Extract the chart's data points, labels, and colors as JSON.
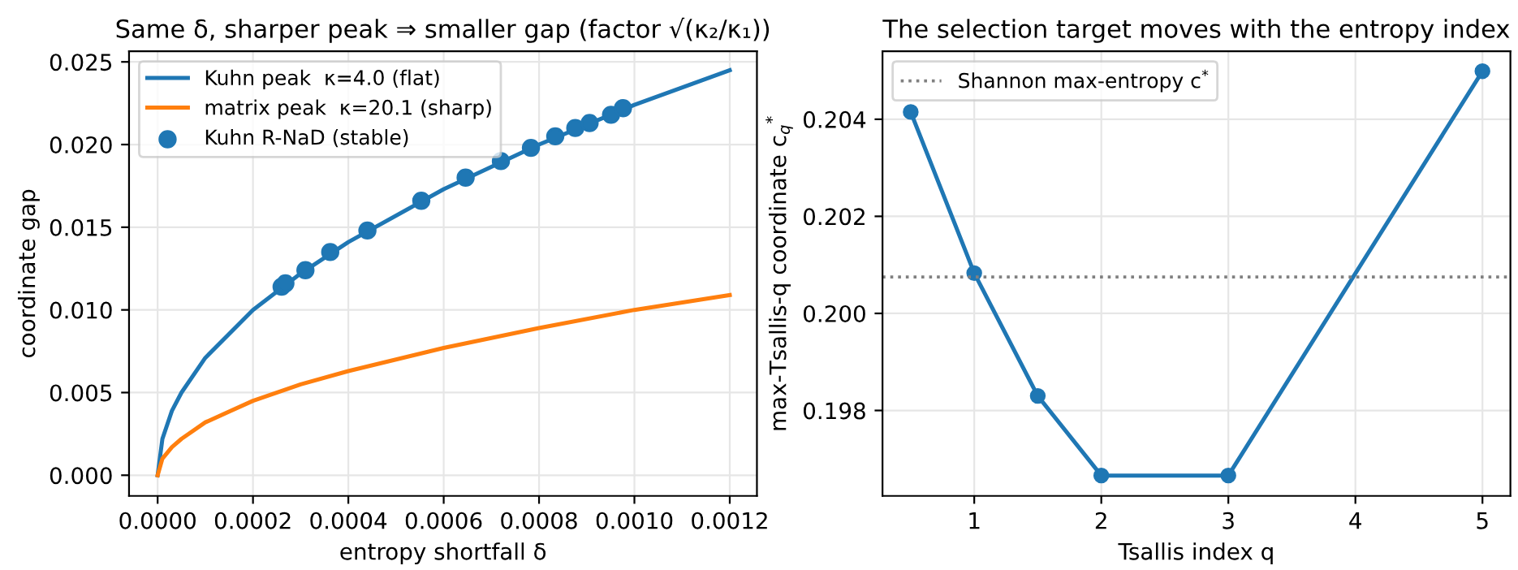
{
  "chart_data": [
    {
      "type": "line",
      "title": "Same δ, sharper peak ⇒ smaller gap (factor √(κ₂/κ₁))",
      "xlabel": "entropy shortfall δ",
      "ylabel": "coordinate gap",
      "xlim": [
        -6e-05,
        0.001257
      ],
      "ylim": [
        -0.00125,
        0.02564
      ],
      "xticks": [
        {
          "value": 0,
          "label": "0.0000"
        },
        {
          "value": 0.0002,
          "label": "0.0002"
        },
        {
          "value": 0.0004,
          "label": "0.0004"
        },
        {
          "value": 0.0006,
          "label": "0.0006"
        },
        {
          "value": 0.0008,
          "label": "0.0008"
        },
        {
          "value": 0.001,
          "label": "0.0010"
        },
        {
          "value": 0.0012,
          "label": "0.0012"
        }
      ],
      "yticks": [
        {
          "value": 0,
          "label": "0.000"
        },
        {
          "value": 0.005,
          "label": "0.005"
        },
        {
          "value": 0.01,
          "label": "0.010"
        },
        {
          "value": 0.015,
          "label": "0.015"
        },
        {
          "value": 0.02,
          "label": "0.020"
        },
        {
          "value": 0.025,
          "label": "0.025"
        }
      ],
      "grid": true,
      "legend": "top left",
      "series": [
        {
          "name": "Kuhn peak  κ=4.0 (flat)",
          "color": "#1f77b4",
          "type": "line",
          "marker": "none",
          "x": [
            0,
            1e-05,
            3e-05,
            5e-05,
            0.0001,
            0.0002,
            0.0003,
            0.0004,
            0.0006,
            0.0008,
            0.001,
            0.0012
          ],
          "values": [
            0,
            0.0022,
            0.0039,
            0.005,
            0.0071,
            0.01,
            0.0122,
            0.0141,
            0.0173,
            0.02,
            0.0224,
            0.0245
          ]
        },
        {
          "name": "matrix peak  κ=20.1 (sharp)",
          "color": "#ff7f0e",
          "type": "line",
          "marker": "none",
          "x": [
            0,
            1e-05,
            3e-05,
            5e-05,
            0.0001,
            0.0002,
            0.0003,
            0.0004,
            0.0006,
            0.0008,
            0.001,
            0.0012
          ],
          "values": [
            0,
            0.001,
            0.0017,
            0.0022,
            0.0032,
            0.0045,
            0.0055,
            0.0063,
            0.0077,
            0.0089,
            0.01,
            0.0109
          ]
        },
        {
          "name": "Kuhn R-NaD (stable)",
          "color": "#1f77b4",
          "type": "scatter",
          "marker": "circle",
          "x": [
            0.00026,
            0.000268,
            0.00031,
            0.000362,
            0.00044,
            0.000553,
            0.000646,
            0.00072,
            0.000783,
            0.000834,
            0.000876,
            0.000906,
            0.000951,
            0.000976
          ],
          "values": [
            0.0114,
            0.0116,
            0.0124,
            0.0135,
            0.0148,
            0.0166,
            0.018,
            0.019,
            0.0198,
            0.0205,
            0.021,
            0.0213,
            0.0218,
            0.0222
          ]
        }
      ]
    },
    {
      "type": "line",
      "title": "The selection target moves with the entropy index",
      "xlabel": "Tsallis index q",
      "ylabel": "max-Tsallis-q coordinate c$_{q}$$^{*}$",
      "xlim": [
        0.278,
        5.22
      ],
      "ylim": [
        0.19624,
        0.2054
      ],
      "xticks": [
        1,
        2,
        3,
        4,
        5
      ],
      "yticks": [
        0.198,
        {
          "value": 0.2,
          "label": "0.200"
        },
        0.202,
        0.204
      ],
      "grid": true,
      "legend": "top left",
      "marker": "circle",
      "line_style": "solid",
      "x": [
        0.5,
        1,
        1.5,
        2,
        3,
        5
      ],
      "series": [
        {
          "color": "#1f77b4",
          "values": [
            0.20415,
            0.20083,
            0.1983,
            0.19666,
            0.19666,
            0.20499
          ]
        }
      ],
      "ref_lines": [
        {
          "axis": "y",
          "value": 0.20075,
          "label": "Shannon max-entropy c$^{*}$",
          "color": "#808080",
          "line_style": "dotted"
        }
      ]
    }
  ]
}
